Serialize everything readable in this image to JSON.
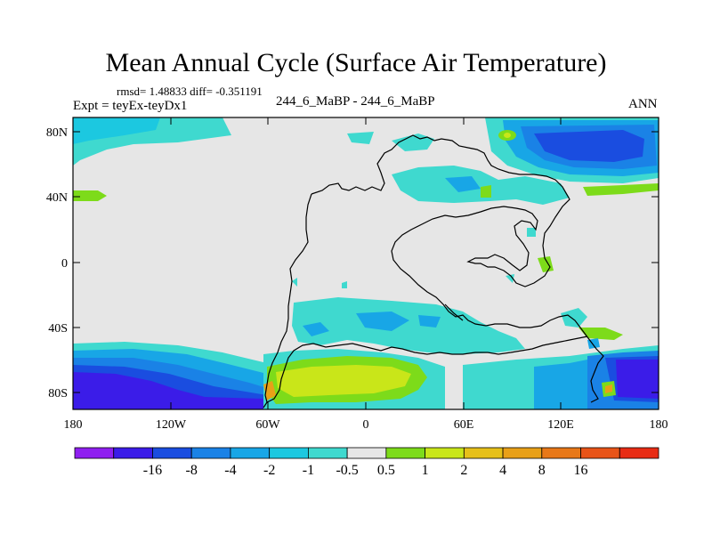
{
  "header": {
    "title": "Mean Annual Cycle (Surface Air Temperature)",
    "stats": "rmsd= 1.48833 diff= -0.351191",
    "experiment": "Expt = teyEx-teyDx1",
    "comparison": "244_6_MaBP - 244_6_MaBP",
    "season": "ANN"
  },
  "axes": {
    "lat_labels": [
      "80N",
      "40N",
      "0",
      "40S",
      "80S"
    ],
    "lon_labels": [
      "180",
      "120W",
      "60W",
      "0",
      "60E",
      "120E",
      "180"
    ]
  },
  "colorbar": {
    "labels": [
      "-16",
      "-8",
      "-4",
      "-2",
      "-1",
      "-0.5",
      "0.5",
      "1",
      "2",
      "4",
      "8",
      "16"
    ],
    "colors": [
      "#8f1ff0",
      "#3b1ce8",
      "#1a4de0",
      "#1a82e6",
      "#18a6e6",
      "#1cc8e0",
      "#3fd9cf",
      "#e6e6e6",
      "#7ddb1a",
      "#c9e619",
      "#e6c019",
      "#e8a018",
      "#e87818",
      "#e85418",
      "#e82c14"
    ]
  },
  "colors": {
    "neutral": "#e6e6e6",
    "cyan": "#3fd9cf",
    "teal": "#1cc8e0",
    "light_blue": "#18a6e6",
    "mid_blue": "#1a82e6",
    "blue": "#1a4de0",
    "deep_blue": "#3b1ce8",
    "purple": "#8f1ff0",
    "green": "#7ddb1a",
    "yellow_green": "#c9e619",
    "orange": "#e8a018"
  }
}
